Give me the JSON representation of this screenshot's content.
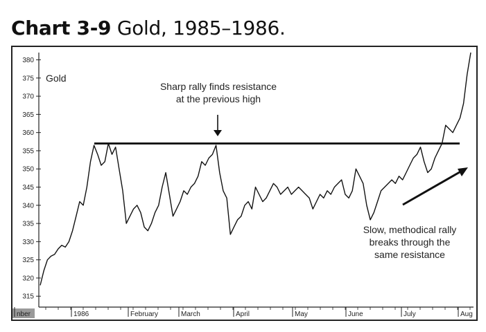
{
  "figure": {
    "title_bold": "Chart 3-9",
    "title_rest": "Gold, 1985–1986."
  },
  "chart_data": {
    "type": "line",
    "title": "Gold",
    "ylim": [
      312,
      382
    ],
    "y_ticks": [
      315,
      320,
      325,
      330,
      335,
      340,
      345,
      350,
      355,
      360,
      365,
      370,
      375,
      380
    ],
    "x_tick_labels": [
      "nber",
      "1986",
      "February",
      "March",
      "April",
      "May",
      "June",
      "July",
      "Aug"
    ],
    "series": [
      {
        "values": [
          318,
          322,
          325,
          326,
          326.5,
          328,
          329,
          328.5,
          330,
          333,
          337,
          341,
          340,
          345,
          352,
          356.5,
          354,
          351,
          352,
          357,
          354,
          356,
          350,
          344,
          335,
          337,
          339,
          340,
          338,
          334,
          333,
          335,
          338,
          340,
          345,
          349,
          343,
          337,
          339,
          341,
          344,
          343,
          345,
          346,
          348,
          352,
          351,
          353,
          354,
          356.5,
          349,
          344,
          342,
          332,
          334,
          336,
          337,
          340,
          341,
          339,
          345,
          343,
          341,
          342,
          344,
          346,
          345,
          343,
          344,
          345,
          343,
          344,
          345,
          344,
          343,
          342,
          339,
          341,
          343,
          342,
          344,
          343,
          345,
          346,
          347,
          343,
          342,
          344,
          350,
          348,
          346,
          340,
          336,
          338,
          341,
          344,
          345,
          346,
          347,
          346,
          348,
          347,
          349,
          351,
          353,
          354,
          356,
          352,
          349,
          350,
          353,
          355,
          357,
          362,
          361,
          360,
          362,
          364,
          368,
          376,
          382
        ]
      }
    ],
    "resistance_level": 357,
    "annotations": [
      {
        "text_lines": [
          "Sharp rally finds resistance",
          "at the previous high"
        ]
      },
      {
        "text_lines": [
          "Slow, methodical rally",
          "breaks through the",
          "same resistance"
        ]
      }
    ]
  }
}
